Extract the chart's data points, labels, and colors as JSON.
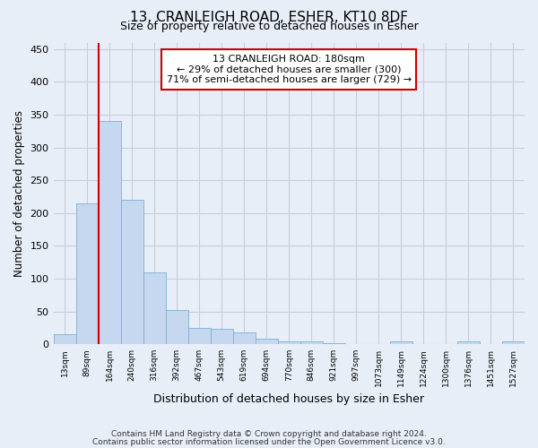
{
  "title1": "13, CRANLEIGH ROAD, ESHER, KT10 8DF",
  "title2": "Size of property relative to detached houses in Esher",
  "xlabel": "Distribution of detached houses by size in Esher",
  "ylabel": "Number of detached properties",
  "categories": [
    "13sqm",
    "89sqm",
    "164sqm",
    "240sqm",
    "316sqm",
    "392sqm",
    "467sqm",
    "543sqm",
    "619sqm",
    "694sqm",
    "770sqm",
    "846sqm",
    "921sqm",
    "997sqm",
    "1073sqm",
    "1149sqm",
    "1224sqm",
    "1300sqm",
    "1376sqm",
    "1451sqm",
    "1527sqm"
  ],
  "values": [
    15,
    215,
    340,
    220,
    110,
    52,
    25,
    24,
    18,
    9,
    5,
    4,
    2,
    0,
    0,
    4,
    0,
    0,
    4,
    0,
    4
  ],
  "bar_color": "#c5d8f0",
  "bar_edge_color": "#7bafd4",
  "vline_x": 2,
  "vline_color": "#cc0000",
  "annotation_line1": "13 CRANLEIGH ROAD: 180sqm",
  "annotation_line2": "← 29% of detached houses are smaller (300)",
  "annotation_line3": "71% of semi-detached houses are larger (729) →",
  "annotation_box_color": "white",
  "annotation_box_edge": "#cc0000",
  "ylim": [
    0,
    460
  ],
  "yticks": [
    0,
    50,
    100,
    150,
    200,
    250,
    300,
    350,
    400,
    450
  ],
  "fig_bg": "#e8eef8",
  "ax_bg": "#e8eef8",
  "grid_color": "#c8cdd8",
  "footer1": "Contains HM Land Registry data © Crown copyright and database right 2024.",
  "footer2": "Contains public sector information licensed under the Open Government Licence v3.0."
}
